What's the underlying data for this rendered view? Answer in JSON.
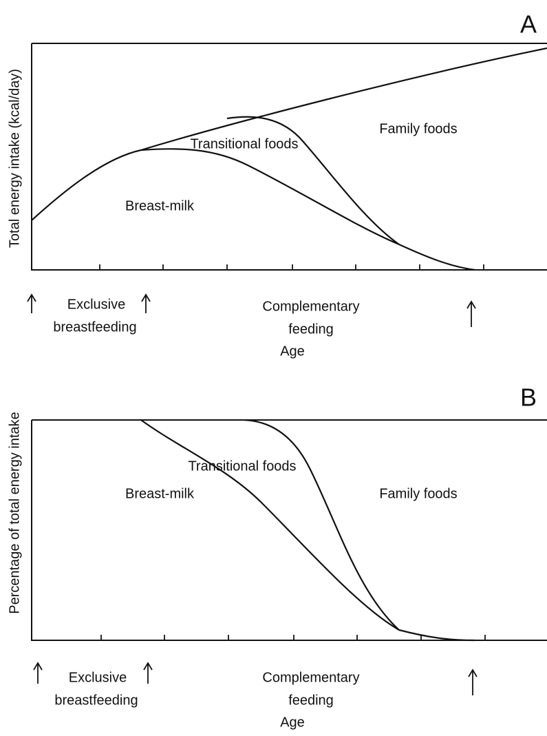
{
  "panels": [
    {
      "letter": "A",
      "y_label": "Total energy intake (kcal/day)",
      "regions": {
        "breast_milk": "Breast-milk",
        "transitional": "Transitional foods",
        "family": "Family foods"
      },
      "phase_1": [
        "Exclusive",
        "breastfeeding"
      ],
      "phase_2": [
        "Complementary",
        "feeding"
      ],
      "x_label": "Age"
    },
    {
      "letter": "B",
      "y_label": "Percentage of total energy intake",
      "regions": {
        "breast_milk": "Breast-milk",
        "transitional": "Transitional foods",
        "family": "Family foods"
      },
      "phase_1": [
        "Exclusive",
        "breastfeeding"
      ],
      "phase_2": [
        "Complementary",
        "feeding"
      ],
      "x_label": "Age"
    }
  ]
}
